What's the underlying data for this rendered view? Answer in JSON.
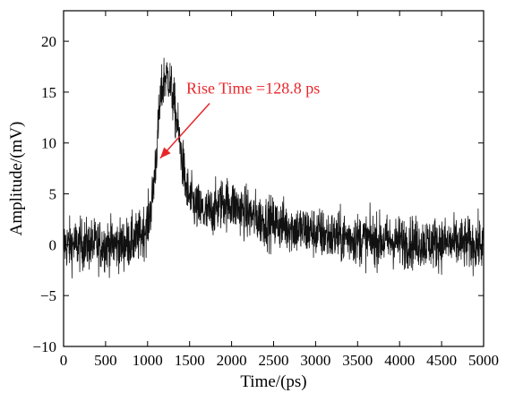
{
  "chart_data": {
    "type": "line",
    "title": "",
    "xlabel": "Time/(ps)",
    "ylabel": "Amplitude/(mV)",
    "xlim": [
      0,
      5000
    ],
    "ylim": [
      -10,
      23
    ],
    "x_ticks": [
      0,
      500,
      1000,
      1500,
      2000,
      2500,
      3000,
      3500,
      4000,
      4500,
      5000
    ],
    "y_ticks": [
      -10,
      -5,
      0,
      5,
      10,
      15,
      20
    ],
    "x_tick_labels": [
      "0",
      "500",
      "1000",
      "1500",
      "2000",
      "2500",
      "3000",
      "3500",
      "4000",
      "4500",
      "5000"
    ],
    "y_tick_labels": [
      "−10",
      "−5",
      "0",
      "5",
      "10",
      "15",
      "20"
    ],
    "grid": false,
    "series": [
      {
        "color": "#111111",
        "x": [
          0,
          100,
          200,
          300,
          400,
          500,
          600,
          700,
          800,
          900,
          1000,
          1050,
          1100,
          1150,
          1200,
          1250,
          1300,
          1350,
          1400,
          1450,
          1500,
          1600,
          1700,
          1800,
          1900,
          2000,
          2100,
          2200,
          2400,
          2600,
          2800,
          3000,
          3200,
          3400,
          3600,
          3800,
          4000,
          4200,
          4400,
          4600,
          4800,
          5000
        ],
        "y": [
          0,
          0,
          0,
          0,
          0,
          0,
          0,
          0,
          0.3,
          0.7,
          2,
          4,
          8.5,
          14,
          16.5,
          16.5,
          14.5,
          12,
          9,
          6,
          4.5,
          3.5,
          3,
          3.5,
          4.2,
          4,
          3.5,
          3,
          2.3,
          2,
          1.5,
          1.2,
          0.8,
          0.7,
          0.5,
          0.4,
          0.3,
          0.2,
          0.2,
          0.1,
          0.1,
          0
        ],
        "noise_amplitude_mV": 2.3
      }
    ],
    "annotations": [
      {
        "text": "Rise Time =128.8 ps",
        "color": "#e8262a",
        "arrow_to": [
          1150,
          8.5
        ],
        "arrow_from": [
          1770,
          14.6
        ]
      }
    ]
  }
}
